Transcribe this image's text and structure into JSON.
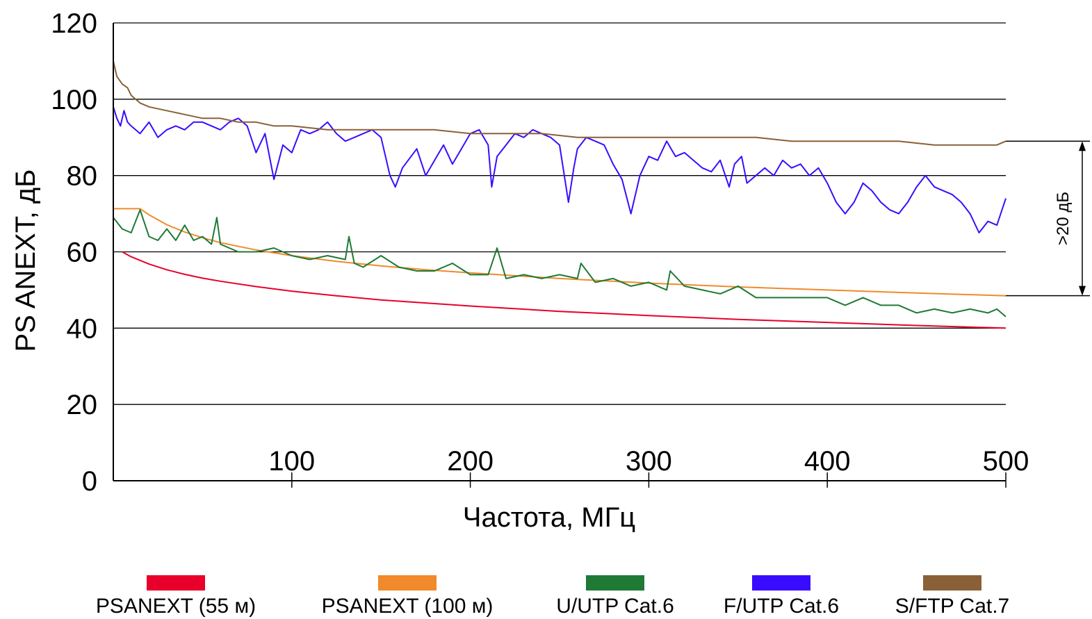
{
  "chart_data": {
    "type": "line",
    "xlabel": "Частота, МГц",
    "ylabel": "PS ANEXT, дБ",
    "xlim": [
      0,
      500
    ],
    "ylim": [
      0,
      120
    ],
    "x_ticks": [
      "100",
      "200",
      "300",
      "400",
      "500"
    ],
    "y_ticks": [
      "0",
      "20",
      "40",
      "60",
      "80",
      "100",
      "120"
    ],
    "grid": "horizontal",
    "legend": "bottom",
    "annotation": ">20 дБ",
    "series": [
      {
        "name": "PSANEXT (55 м)",
        "color": "#e8002a",
        "x": [
          5,
          10,
          20,
          30,
          40,
          50,
          60,
          80,
          100,
          125,
          150,
          175,
          200,
          250,
          300,
          350,
          400,
          450,
          500
        ],
        "y": [
          60,
          58.7,
          56.8,
          55.3,
          54.1,
          53.1,
          52.3,
          50.9,
          49.7,
          48.5,
          47.4,
          46.6,
          45.8,
          44.4,
          43.3,
          42.3,
          41.5,
          40.7,
          40.0
        ]
      },
      {
        "name": "PSANEXT (100 м)",
        "color": "#f08a2a",
        "x": [
          0,
          15,
          20,
          30,
          40,
          50,
          60,
          80,
          100,
          125,
          150,
          175,
          200,
          250,
          300,
          350,
          400,
          450,
          500
        ],
        "y": [
          71.3,
          71.3,
          69.7,
          67.1,
          65.2,
          63.7,
          62.4,
          60.5,
          59.0,
          57.5,
          56.3,
          55.3,
          54.5,
          53.0,
          51.8,
          50.8,
          50.0,
          49.2,
          48.5
        ]
      },
      {
        "name": "U/UTP Cat.6",
        "color": "#1e7a35",
        "x": [
          0,
          5,
          10,
          15,
          20,
          25,
          30,
          35,
          40,
          45,
          50,
          55,
          58,
          60,
          65,
          70,
          80,
          90,
          100,
          110,
          120,
          130,
          132,
          135,
          140,
          150,
          160,
          170,
          180,
          190,
          200,
          210,
          215,
          220,
          230,
          240,
          250,
          260,
          262,
          270,
          280,
          290,
          300,
          310,
          312,
          320,
          330,
          340,
          350,
          360,
          370,
          380,
          390,
          400,
          410,
          420,
          430,
          440,
          450,
          460,
          470,
          480,
          490,
          495,
          500
        ],
        "y": [
          69,
          66,
          65,
          71,
          64,
          63,
          66,
          63,
          67,
          63,
          64,
          62,
          69,
          62,
          61,
          60,
          60,
          61,
          59,
          58,
          59,
          58,
          64,
          57,
          56,
          59,
          56,
          55,
          55,
          57,
          54,
          54,
          61,
          53,
          54,
          53,
          54,
          53,
          57,
          52,
          53,
          51,
          52,
          50,
          55,
          51,
          50,
          49,
          51,
          48,
          48,
          48,
          48,
          48,
          46,
          48,
          46,
          46,
          44,
          45,
          44,
          45,
          44,
          45,
          43
        ]
      },
      {
        "name": "F/UTP Cat.6",
        "color": "#3a0cff",
        "x": [
          0,
          2,
          4,
          6,
          8,
          10,
          15,
          20,
          25,
          30,
          35,
          40,
          45,
          50,
          55,
          60,
          65,
          70,
          75,
          80,
          85,
          90,
          95,
          100,
          105,
          110,
          115,
          120,
          125,
          130,
          135,
          140,
          145,
          150,
          155,
          158,
          162,
          170,
          175,
          180,
          185,
          190,
          195,
          200,
          205,
          210,
          212,
          215,
          220,
          225,
          230,
          235,
          240,
          245,
          250,
          255,
          258,
          260,
          265,
          270,
          275,
          280,
          285,
          290,
          295,
          300,
          305,
          310,
          315,
          320,
          325,
          330,
          335,
          340,
          345,
          348,
          352,
          355,
          360,
          365,
          370,
          375,
          380,
          385,
          390,
          395,
          400,
          405,
          410,
          415,
          420,
          425,
          430,
          435,
          440,
          445,
          450,
          455,
          460,
          465,
          470,
          475,
          480,
          485,
          490,
          495,
          500
        ],
        "y": [
          98,
          95,
          93,
          97,
          94,
          93,
          91,
          94,
          90,
          92,
          93,
          92,
          94,
          94,
          93,
          92,
          94,
          95,
          93,
          86,
          91,
          79,
          88,
          86,
          92,
          91,
          92,
          94,
          91,
          89,
          90,
          91,
          92,
          90,
          80,
          77,
          82,
          87,
          80,
          84,
          88,
          83,
          87,
          91,
          92,
          88,
          77,
          85,
          88,
          91,
          90,
          92,
          91,
          90,
          88,
          73,
          82,
          87,
          90,
          89,
          88,
          83,
          79,
          70,
          80,
          85,
          84,
          89,
          85,
          86,
          84,
          82,
          81,
          84,
          77,
          83,
          85,
          78,
          80,
          82,
          80,
          84,
          82,
          83,
          80,
          82,
          78,
          73,
          70,
          73,
          78,
          76,
          73,
          71,
          70,
          73,
          77,
          80,
          77,
          76,
          75,
          73,
          70,
          65,
          68,
          67,
          74
        ]
      },
      {
        "name": "S/FTP Cat.7",
        "color": "#8a6037",
        "x": [
          0,
          2,
          5,
          8,
          10,
          15,
          20,
          30,
          40,
          50,
          60,
          70,
          80,
          90,
          100,
          120,
          140,
          160,
          180,
          200,
          220,
          240,
          260,
          280,
          300,
          320,
          340,
          360,
          380,
          400,
          420,
          440,
          460,
          480,
          495,
          500
        ],
        "y": [
          110,
          106,
          104,
          103,
          101,
          99,
          98,
          97,
          96,
          95,
          95,
          94,
          94,
          93,
          93,
          92,
          92,
          92,
          92,
          91,
          91,
          91,
          90,
          90,
          90,
          90,
          90,
          90,
          89,
          89,
          89,
          89,
          88,
          88,
          88,
          89
        ]
      }
    ]
  }
}
